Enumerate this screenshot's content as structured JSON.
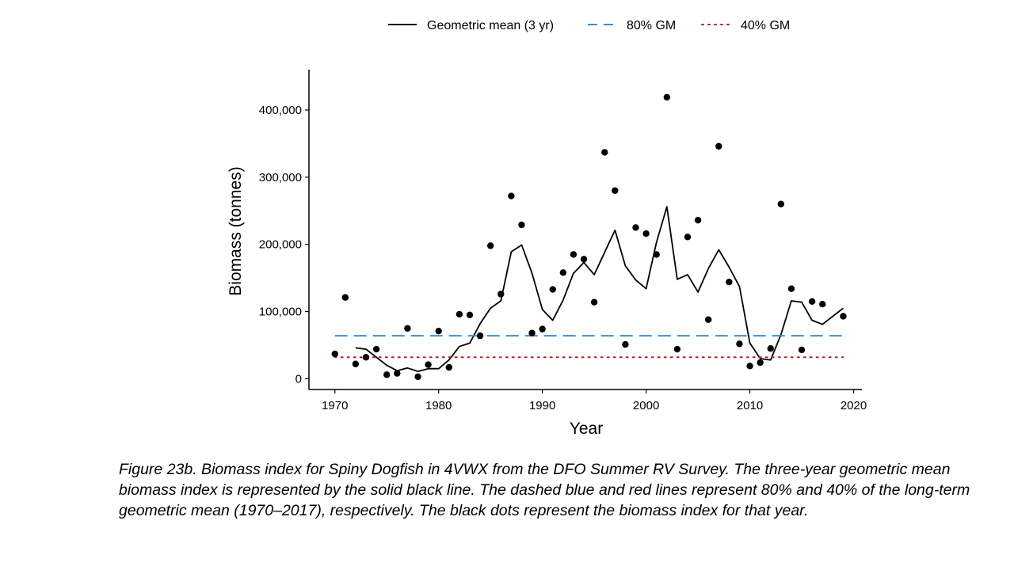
{
  "chart_data": {
    "type": "line",
    "title": "",
    "xlabel": "Year",
    "ylabel": "Biomass (tonnes)",
    "xlim": [
      1967.5,
      2020.8
    ],
    "ylim": [
      -16000,
      460000
    ],
    "xticks": [
      1970,
      1980,
      1990,
      2000,
      2010,
      2020
    ],
    "yticks": [
      0,
      100000,
      200000,
      300000,
      400000
    ],
    "ytick_labels": [
      "0",
      "100,000",
      "200,000",
      "300,000",
      "400,000"
    ],
    "grid": false,
    "legend_position": "top",
    "series": [
      {
        "name": "Geometric mean (3 yr)",
        "kind": "line",
        "style": "solid",
        "color": "#000000",
        "x": [
          1972,
          1973,
          1974,
          1975,
          1976,
          1977,
          1978,
          1979,
          1980,
          1981,
          1982,
          1983,
          1984,
          1985,
          1986,
          1987,
          1988,
          1989,
          1990,
          1991,
          1992,
          1993,
          1994,
          1995,
          1996,
          1997,
          1998,
          1999,
          2000,
          2001,
          2002,
          2003,
          2004,
          2005,
          2006,
          2007,
          2008,
          2009,
          2010,
          2011,
          2012,
          2013,
          2014,
          2015,
          2016,
          2017,
          2018,
          2019
        ],
        "y": [
          46000,
          44000,
          32000,
          20000,
          12000,
          16000,
          11000,
          15000,
          15000,
          28000,
          48000,
          53000,
          82000,
          105000,
          116000,
          189000,
          199000,
          157000,
          103000,
          87000,
          117000,
          157000,
          173000,
          155000,
          188000,
          221000,
          168000,
          147000,
          134000,
          203000,
          256000,
          148000,
          155000,
          129000,
          164000,
          192000,
          166000,
          137000,
          53000,
          30000,
          28000,
          66000,
          116000,
          114000,
          87000,
          81000,
          93000,
          105000
        ]
      },
      {
        "name": "80% GM",
        "kind": "hline",
        "style": "dashed",
        "color": "#3a8fd6",
        "x": [
          1970,
          2019
        ],
        "y": [
          64000,
          64000
        ]
      },
      {
        "name": "40% GM",
        "kind": "hline",
        "style": "dotted",
        "color": "#b22222",
        "x": [
          1970,
          2019
        ],
        "y": [
          32000,
          32000
        ]
      },
      {
        "name": "",
        "kind": "points",
        "color": "#000000",
        "x": [
          1970,
          1971,
          1972,
          1973,
          1974,
          1975,
          1976,
          1977,
          1978,
          1979,
          1980,
          1981,
          1982,
          1983,
          1984,
          1985,
          1986,
          1987,
          1988,
          1989,
          1990,
          1991,
          1992,
          1993,
          1994,
          1995,
          1996,
          1997,
          1998,
          1999,
          2000,
          2001,
          2002,
          2003,
          2004,
          2005,
          2006,
          2007,
          2008,
          2009,
          2010,
          2011,
          2012,
          2013,
          2014,
          2015,
          2016,
          2017,
          2019
        ],
        "y": [
          37000,
          121000,
          22000,
          32000,
          44000,
          6000,
          8000,
          75000,
          3000,
          21000,
          71000,
          17000,
          96000,
          95000,
          64000,
          198000,
          126000,
          272000,
          229000,
          68000,
          74000,
          133000,
          158000,
          185000,
          178000,
          114000,
          337000,
          280000,
          51000,
          225000,
          216000,
          185000,
          419000,
          44000,
          211000,
          236000,
          88000,
          346000,
          144000,
          52000,
          19000,
          24000,
          45000,
          260000,
          134000,
          43000,
          115000,
          111000,
          93000
        ]
      }
    ]
  },
  "caption": "Figure 23b. Biomass index for Spiny Dogfish in 4VWX from the DFO Summer RV Survey. The three-year geometric mean biomass index is represented by the solid black line. The dashed blue and red lines represent 80% and 40% of the long-term geometric mean (1970–2017), respectively. The black dots represent the biomass index for that year."
}
